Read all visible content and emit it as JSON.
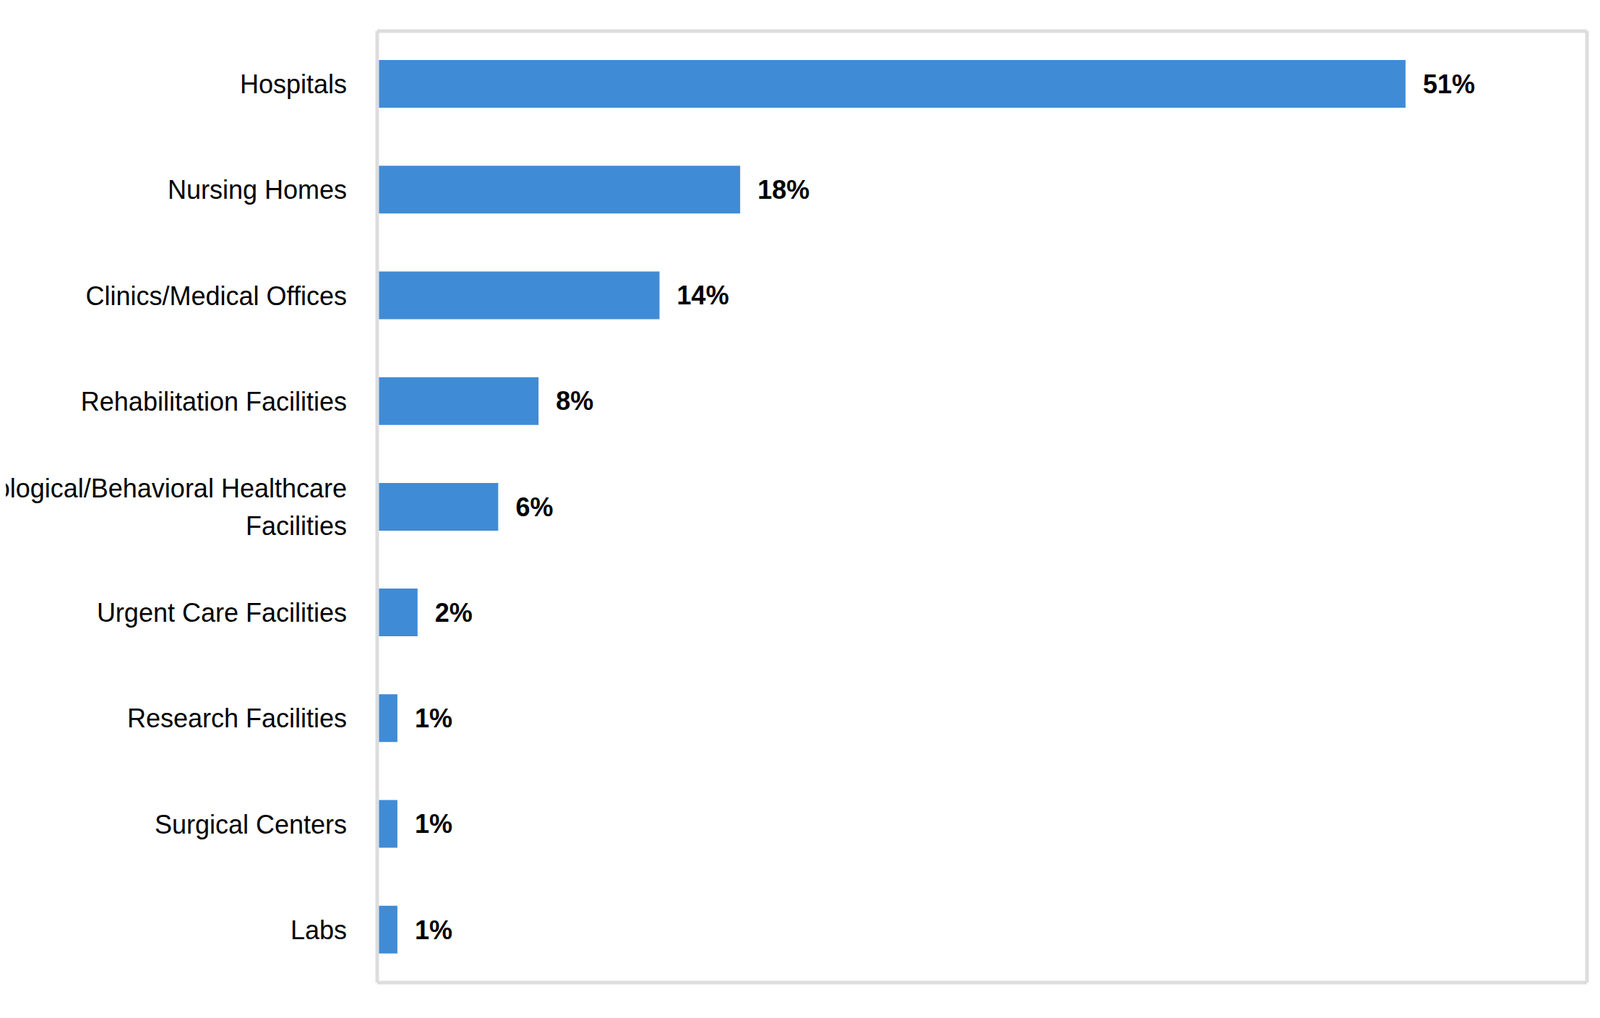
{
  "chart_data": {
    "type": "bar",
    "orientation": "horizontal",
    "categories": [
      "Hospitals",
      "Nursing Homes",
      "Clinics/Medical Offices",
      "Rehabilitation Facilities",
      "Psychological/Behavioral Healthcare Facilities",
      "Urgent Care Facilities",
      "Research Facilities",
      "Surgical Centers",
      "Labs"
    ],
    "values": [
      51,
      18,
      14,
      8,
      6,
      2,
      1,
      1,
      1
    ],
    "value_labels": [
      "51%",
      "18%",
      "14%",
      "8%",
      "6%",
      "2%",
      "1%",
      "1%",
      "1%"
    ],
    "color": "#408bd6",
    "xlim": [
      0,
      60
    ],
    "data_labels": true,
    "tick_labels": "y",
    "grid": false
  }
}
